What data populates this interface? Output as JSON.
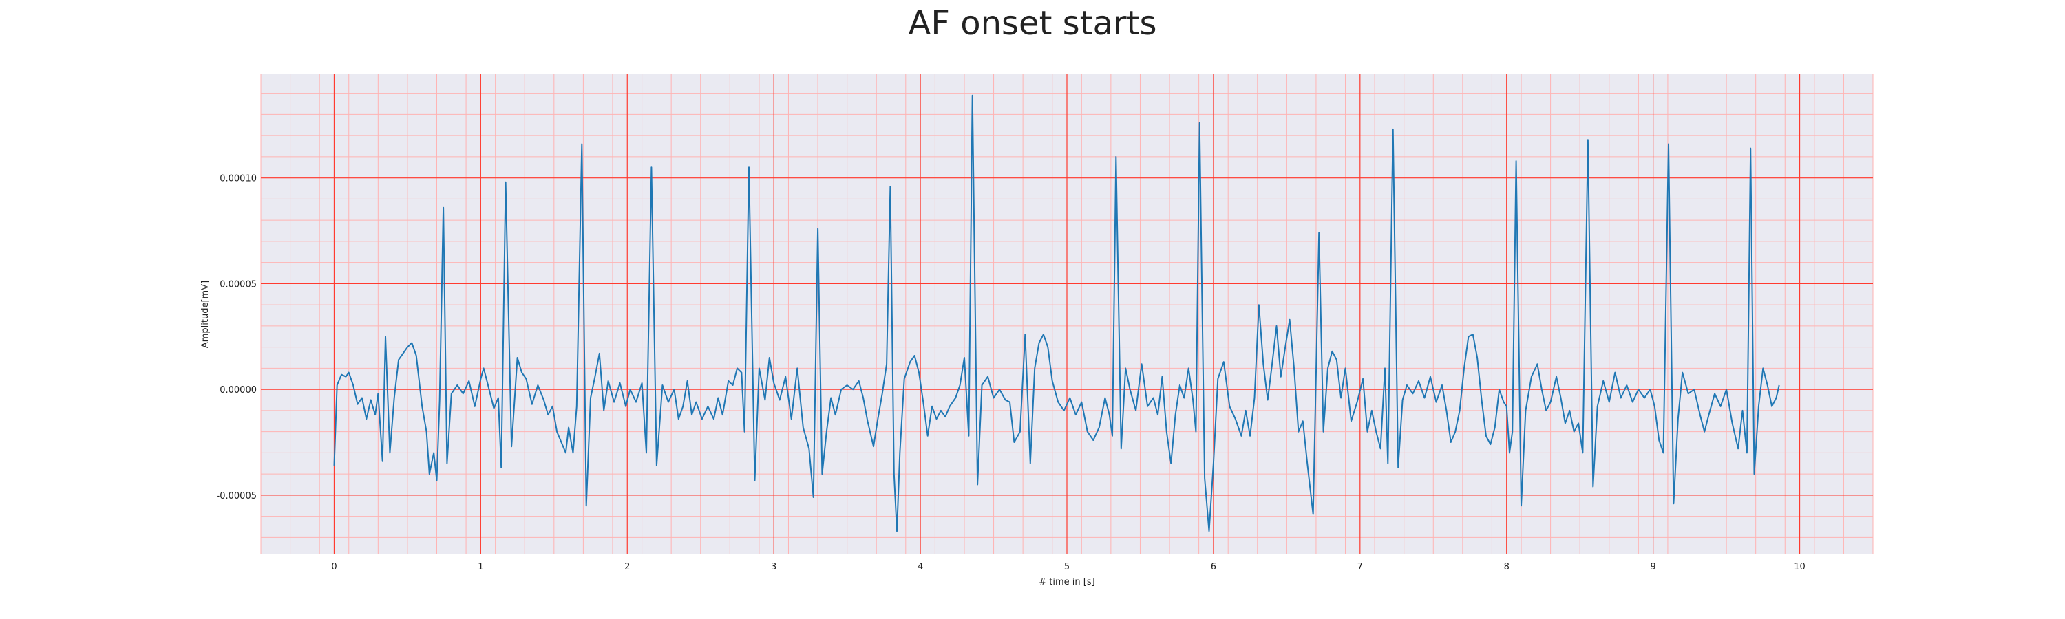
{
  "chart_data": {
    "type": "line",
    "title": "AF onset starts",
    "xlabel": "# time in [s]",
    "ylabel": "Amplitude[mV]",
    "xlim": [
      -0.5,
      10.5
    ],
    "ylim": [
      -7.8e-05,
      0.000149
    ],
    "x_ticks": [
      "0",
      "1",
      "2",
      "3",
      "4",
      "5",
      "6",
      "7",
      "8",
      "9",
      "10"
    ],
    "y_ticks": [
      "-0.00005",
      "0.00000",
      "0.00005",
      "0.00010"
    ],
    "grid": "on",
    "background": "#eaeaf2",
    "major_grid_color": "#ff3b30",
    "minor_grid_color": "#ffb3b3",
    "line_color": "#1f77b4",
    "series": [
      {
        "values": [
          [
            0.0,
            -3.6e-05
          ],
          [
            0.02,
            2e-06
          ],
          [
            0.05,
            7e-06
          ],
          [
            0.08,
            6e-06
          ],
          [
            0.1,
            8e-06
          ],
          [
            0.13,
            2e-06
          ],
          [
            0.16,
            -7e-06
          ],
          [
            0.19,
            -4e-06
          ],
          [
            0.22,
            -1.4e-05
          ],
          [
            0.25,
            -5e-06
          ],
          [
            0.28,
            -1.2e-05
          ],
          [
            0.3,
            -2e-06
          ],
          [
            0.33,
            -3.4e-05
          ],
          [
            0.35,
            2.5e-05
          ],
          [
            0.38,
            -3e-05
          ],
          [
            0.41,
            -4e-06
          ],
          [
            0.44,
            1.4e-05
          ],
          [
            0.47,
            1.7e-05
          ],
          [
            0.5,
            2e-05
          ],
          [
            0.53,
            2.2e-05
          ],
          [
            0.56,
            1.6e-05
          ],
          [
            0.6,
            -8e-06
          ],
          [
            0.63,
            -2e-05
          ],
          [
            0.65,
            -4e-05
          ],
          [
            0.68,
            -3e-05
          ],
          [
            0.7,
            -4.3e-05
          ],
          [
            0.72,
            -5e-06
          ],
          [
            0.745,
            8.6e-05
          ],
          [
            0.77,
            -3.5e-05
          ],
          [
            0.8,
            -2e-06
          ],
          [
            0.84,
            2e-06
          ],
          [
            0.88,
            -2e-06
          ],
          [
            0.92,
            4e-06
          ],
          [
            0.96,
            -8e-06
          ],
          [
            1.0,
            5e-06
          ],
          [
            1.02,
            1e-05
          ],
          [
            1.05,
            2e-06
          ],
          [
            1.09,
            -9e-06
          ],
          [
            1.12,
            -4e-06
          ],
          [
            1.14,
            -3.7e-05
          ],
          [
            1.17,
            9.8e-05
          ],
          [
            1.21,
            -2.7e-05
          ],
          [
            1.25,
            1.5e-05
          ],
          [
            1.28,
            8e-06
          ],
          [
            1.31,
            5e-06
          ],
          [
            1.35,
            -7e-06
          ],
          [
            1.39,
            2e-06
          ],
          [
            1.43,
            -5e-06
          ],
          [
            1.46,
            -1.2e-05
          ],
          [
            1.49,
            -8e-06
          ],
          [
            1.52,
            -2e-05
          ],
          [
            1.55,
            -2.5e-05
          ],
          [
            1.58,
            -3e-05
          ],
          [
            1.6,
            -1.8e-05
          ],
          [
            1.63,
            -3e-05
          ],
          [
            1.655,
            -8e-06
          ],
          [
            1.69,
            0.000116
          ],
          [
            1.72,
            -5.5e-05
          ],
          [
            1.75,
            -4e-06
          ],
          [
            1.78,
            6e-06
          ],
          [
            1.81,
            1.7e-05
          ],
          [
            1.84,
            -1e-05
          ],
          [
            1.87,
            4e-06
          ],
          [
            1.91,
            -6e-06
          ],
          [
            1.95,
            3e-06
          ],
          [
            1.99,
            -8e-06
          ],
          [
            2.02,
            0.0
          ],
          [
            2.06,
            -6e-06
          ],
          [
            2.1,
            3e-06
          ],
          [
            2.13,
            -3e-05
          ],
          [
            2.165,
            0.000105
          ],
          [
            2.2,
            -3.6e-05
          ],
          [
            2.24,
            2e-06
          ],
          [
            2.28,
            -6e-06
          ],
          [
            2.32,
            0.0
          ],
          [
            2.35,
            -1.4e-05
          ],
          [
            2.38,
            -8e-06
          ],
          [
            2.41,
            4e-06
          ],
          [
            2.44,
            -1.2e-05
          ],
          [
            2.47,
            -6e-06
          ],
          [
            2.51,
            -1.4e-05
          ],
          [
            2.55,
            -8e-06
          ],
          [
            2.59,
            -1.4e-05
          ],
          [
            2.62,
            -4e-06
          ],
          [
            2.65,
            -1.2e-05
          ],
          [
            2.69,
            4e-06
          ],
          [
            2.72,
            2e-06
          ],
          [
            2.75,
            1e-05
          ],
          [
            2.78,
            8e-06
          ],
          [
            2.8,
            -2e-05
          ],
          [
            2.83,
            0.000105
          ],
          [
            2.87,
            -4.3e-05
          ],
          [
            2.9,
            1e-05
          ],
          [
            2.94,
            -5e-06
          ],
          [
            2.97,
            1.5e-05
          ],
          [
            3.0,
            3e-06
          ],
          [
            3.04,
            -5e-06
          ],
          [
            3.08,
            6e-06
          ],
          [
            3.12,
            -1.4e-05
          ],
          [
            3.16,
            1e-05
          ],
          [
            3.2,
            -1.8e-05
          ],
          [
            3.24,
            -2.8e-05
          ],
          [
            3.27,
            -5.1e-05
          ],
          [
            3.3,
            7.6e-05
          ],
          [
            3.33,
            -4e-05
          ],
          [
            3.36,
            -2e-05
          ],
          [
            3.39,
            -4e-06
          ],
          [
            3.42,
            -1.2e-05
          ],
          [
            3.46,
            0.0
          ],
          [
            3.5,
            2e-06
          ],
          [
            3.54,
            0.0
          ],
          [
            3.58,
            4e-06
          ],
          [
            3.61,
            -4e-06
          ],
          [
            3.64,
            -1.5e-05
          ],
          [
            3.68,
            -2.7e-05
          ],
          [
            3.71,
            -1.4e-05
          ],
          [
            3.74,
            -2e-06
          ],
          [
            3.77,
            1.2e-05
          ],
          [
            3.795,
            9.6e-05
          ],
          [
            3.82,
            -4e-05
          ],
          [
            3.84,
            -6.7e-05
          ],
          [
            3.86,
            -3e-05
          ],
          [
            3.89,
            5e-06
          ],
          [
            3.93,
            1.3e-05
          ],
          [
            3.96,
            1.6e-05
          ],
          [
            3.99,
            8e-06
          ],
          [
            4.02,
            -6e-06
          ],
          [
            4.05,
            -2.2e-05
          ],
          [
            4.08,
            -8e-06
          ],
          [
            4.11,
            -1.4e-05
          ],
          [
            4.14,
            -1e-05
          ],
          [
            4.17,
            -1.3e-05
          ],
          [
            4.2,
            -8e-06
          ],
          [
            4.24,
            -4e-06
          ],
          [
            4.27,
            2e-06
          ],
          [
            4.3,
            1.5e-05
          ],
          [
            4.33,
            -2.2e-05
          ],
          [
            4.355,
            0.000139
          ],
          [
            4.39,
            -4.5e-05
          ],
          [
            4.42,
            2e-06
          ],
          [
            4.46,
            6e-06
          ],
          [
            4.5,
            -4e-06
          ],
          [
            4.54,
            0.0
          ],
          [
            4.58,
            -5e-06
          ],
          [
            4.61,
            -6e-06
          ],
          [
            4.64,
            -2.5e-05
          ],
          [
            4.68,
            -2e-05
          ],
          [
            4.715,
            2.6e-05
          ],
          [
            4.75,
            -3.5e-05
          ],
          [
            4.78,
            1e-05
          ],
          [
            4.81,
            2.2e-05
          ],
          [
            4.84,
            2.6e-05
          ],
          [
            4.87,
            2e-05
          ],
          [
            4.9,
            4e-06
          ],
          [
            4.94,
            -6e-06
          ],
          [
            4.98,
            -1e-05
          ],
          [
            5.02,
            -4e-06
          ],
          [
            5.06,
            -1.2e-05
          ],
          [
            5.1,
            -6e-06
          ],
          [
            5.14,
            -2e-05
          ],
          [
            5.18,
            -2.4e-05
          ],
          [
            5.22,
            -1.8e-05
          ],
          [
            5.26,
            -4e-06
          ],
          [
            5.29,
            -1.2e-05
          ],
          [
            5.31,
            -2.2e-05
          ],
          [
            5.335,
            0.00011
          ],
          [
            5.37,
            -2.8e-05
          ],
          [
            5.4,
            1e-05
          ],
          [
            5.43,
            0.0
          ],
          [
            5.47,
            -1e-05
          ],
          [
            5.51,
            1.2e-05
          ],
          [
            5.55,
            -8e-06
          ],
          [
            5.59,
            -4e-06
          ],
          [
            5.62,
            -1.2e-05
          ],
          [
            5.65,
            6e-06
          ],
          [
            5.68,
            -2e-05
          ],
          [
            5.71,
            -3.5e-05
          ],
          [
            5.74,
            -1.2e-05
          ],
          [
            5.77,
            2e-06
          ],
          [
            5.8,
            -4e-06
          ],
          [
            5.83,
            1e-05
          ],
          [
            5.86,
            -5e-06
          ],
          [
            5.88,
            -2e-05
          ],
          [
            5.905,
            0.000126
          ],
          [
            5.94,
            -4.2e-05
          ],
          [
            5.97,
            -6.7e-05
          ],
          [
            6.0,
            -3.5e-05
          ],
          [
            6.03,
            5e-06
          ],
          [
            6.07,
            1.3e-05
          ],
          [
            6.11,
            -8e-06
          ],
          [
            6.15,
            -1.4e-05
          ],
          [
            6.19,
            -2.2e-05
          ],
          [
            6.22,
            -1e-05
          ],
          [
            6.25,
            -2.2e-05
          ],
          [
            6.28,
            -4e-06
          ],
          [
            6.31,
            4e-05
          ],
          [
            6.34,
            1.2e-05
          ],
          [
            6.37,
            -5e-06
          ],
          [
            6.4,
            1.2e-05
          ],
          [
            6.43,
            3e-05
          ],
          [
            6.46,
            6e-06
          ],
          [
            6.49,
            2e-05
          ],
          [
            6.52,
            3.3e-05
          ],
          [
            6.55,
            1e-05
          ],
          [
            6.58,
            -2e-05
          ],
          [
            6.61,
            -1.5e-05
          ],
          [
            6.64,
            -3.5e-05
          ],
          [
            6.68,
            -5.9e-05
          ],
          [
            6.72,
            7.4e-05
          ],
          [
            6.75,
            -2e-05
          ],
          [
            6.78,
            1e-05
          ],
          [
            6.81,
            1.8e-05
          ],
          [
            6.84,
            1.4e-05
          ],
          [
            6.87,
            -4e-06
          ],
          [
            6.9,
            1e-05
          ],
          [
            6.94,
            -1.5e-05
          ],
          [
            6.98,
            -6e-06
          ],
          [
            7.02,
            5e-06
          ],
          [
            7.05,
            -2e-05
          ],
          [
            7.08,
            -1e-05
          ],
          [
            7.11,
            -2e-05
          ],
          [
            7.14,
            -2.8e-05
          ],
          [
            7.17,
            1e-05
          ],
          [
            7.19,
            -3.5e-05
          ],
          [
            7.225,
            0.000123
          ],
          [
            7.26,
            -3.7e-05
          ],
          [
            7.29,
            -5e-06
          ],
          [
            7.32,
            2e-06
          ],
          [
            7.36,
            -2e-06
          ],
          [
            7.4,
            4e-06
          ],
          [
            7.44,
            -4e-06
          ],
          [
            7.48,
            6e-06
          ],
          [
            7.52,
            -6e-06
          ],
          [
            7.56,
            2e-06
          ],
          [
            7.59,
            -1e-05
          ],
          [
            7.62,
            -2.5e-05
          ],
          [
            7.65,
            -2e-05
          ],
          [
            7.68,
            -1e-05
          ],
          [
            7.71,
            1e-05
          ],
          [
            7.74,
            2.5e-05
          ],
          [
            7.77,
            2.6e-05
          ],
          [
            7.8,
            1.5e-05
          ],
          [
            7.83,
            -5e-06
          ],
          [
            7.86,
            -2.2e-05
          ],
          [
            7.89,
            -2.6e-05
          ],
          [
            7.92,
            -1.8e-05
          ],
          [
            7.95,
            0.0
          ],
          [
            7.98,
            -6e-06
          ],
          [
            8.0,
            -8e-06
          ],
          [
            8.02,
            -3e-05
          ],
          [
            8.04,
            -2e-05
          ],
          [
            8.065,
            0.000108
          ],
          [
            8.1,
            -5.5e-05
          ],
          [
            8.13,
            -1e-05
          ],
          [
            8.17,
            6e-06
          ],
          [
            8.21,
            1.2e-05
          ],
          [
            8.24,
            0.0
          ],
          [
            8.27,
            -1e-05
          ],
          [
            8.3,
            -6e-06
          ],
          [
            8.34,
            6e-06
          ],
          [
            8.37,
            -4e-06
          ],
          [
            8.4,
            -1.6e-05
          ],
          [
            8.43,
            -1e-05
          ],
          [
            8.46,
            -2e-05
          ],
          [
            8.49,
            -1.6e-05
          ],
          [
            8.52,
            -3e-05
          ],
          [
            8.555,
            0.000118
          ],
          [
            8.59,
            -4.6e-05
          ],
          [
            8.62,
            -8e-06
          ],
          [
            8.66,
            4e-06
          ],
          [
            8.7,
            -6e-06
          ],
          [
            8.74,
            8e-06
          ],
          [
            8.78,
            -4e-06
          ],
          [
            8.82,
            2e-06
          ],
          [
            8.86,
            -6e-06
          ],
          [
            8.9,
            0.0
          ],
          [
            8.94,
            -4e-06
          ],
          [
            8.98,
            0.0
          ],
          [
            9.01,
            -8e-06
          ],
          [
            9.04,
            -2.4e-05
          ],
          [
            9.07,
            -3e-05
          ],
          [
            9.105,
            0.000116
          ],
          [
            9.14,
            -5.4e-05
          ],
          [
            9.17,
            -1.4e-05
          ],
          [
            9.2,
            8e-06
          ],
          [
            9.24,
            -2e-06
          ],
          [
            9.28,
            0.0
          ],
          [
            9.32,
            -1.2e-05
          ],
          [
            9.35,
            -2e-05
          ],
          [
            9.38,
            -1.2e-05
          ],
          [
            9.42,
            -2e-06
          ],
          [
            9.46,
            -8e-06
          ],
          [
            9.5,
            0.0
          ],
          [
            9.54,
            -1.6e-05
          ],
          [
            9.58,
            -2.8e-05
          ],
          [
            9.61,
            -1e-05
          ],
          [
            9.64,
            -3e-05
          ],
          [
            9.665,
            0.000114
          ],
          [
            9.69,
            -4e-05
          ],
          [
            9.72,
            -8e-06
          ],
          [
            9.75,
            1e-05
          ],
          [
            9.78,
            2e-06
          ],
          [
            9.81,
            -8e-06
          ],
          [
            9.84,
            -4e-06
          ],
          [
            9.86,
            2e-06
          ]
        ]
      }
    ]
  }
}
